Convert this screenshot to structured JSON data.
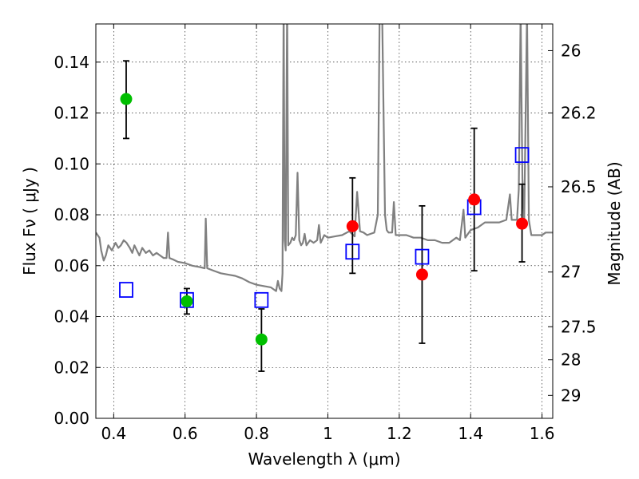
{
  "chart_data": {
    "type": "scatter",
    "xlabel": "Wavelength  λ (μm)",
    "ylabel": "Flux  Fν  ( μJy )",
    "y2label": "Magnitude (AB)",
    "xlim": [
      0.35,
      1.63
    ],
    "ylim": [
      0.0,
      0.155
    ],
    "grid": true,
    "x_ticks": [
      0.4,
      0.6,
      0.8,
      1.0,
      1.2,
      1.4,
      1.6
    ],
    "x_tick_labels": [
      "0.4",
      "0.6",
      "0.8",
      "1",
      "1.2",
      "1.4",
      "1.6"
    ],
    "y_ticks": [
      0.0,
      0.02,
      0.04,
      0.06,
      0.08,
      0.1,
      0.12,
      0.14
    ],
    "y_tick_labels": [
      "0.00",
      "0.02",
      "0.04",
      "0.06",
      "0.08",
      "0.10",
      "0.12",
      "0.14"
    ],
    "y2_ticks": [
      {
        "label": "26",
        "flux": 0.1445
      },
      {
        "label": "26.2",
        "flux": 0.12
      },
      {
        "label": "26.5",
        "flux": 0.091
      },
      {
        "label": "27",
        "flux": 0.0575
      },
      {
        "label": "27.5",
        "flux": 0.036
      },
      {
        "label": "28",
        "flux": 0.023
      },
      {
        "label": "29",
        "flux": 0.009
      }
    ],
    "colors": {
      "green": "#00bf00",
      "red": "#ff0000",
      "blue": "#0000ff",
      "spectrum": "#808080",
      "errorbar": "#000000"
    },
    "series": [
      {
        "marker": "circle",
        "color": "#00bf00",
        "points": [
          {
            "x": 0.435,
            "y": 0.1255,
            "ylow": 0.11,
            "yhigh": 0.1405
          },
          {
            "x": 0.605,
            "y": 0.046,
            "ylow": 0.041,
            "yhigh": 0.051
          },
          {
            "x": 0.814,
            "y": 0.031,
            "ylow": 0.0185,
            "yhigh": 0.043
          }
        ]
      },
      {
        "marker": "circle",
        "color": "#ff0000",
        "points": [
          {
            "x": 1.069,
            "y": 0.0755,
            "ylow": 0.057,
            "yhigh": 0.0945
          },
          {
            "x": 1.264,
            "y": 0.0565,
            "ylow": 0.0295,
            "yhigh": 0.0835
          },
          {
            "x": 1.41,
            "y": 0.086,
            "ylow": 0.058,
            "yhigh": 0.114
          },
          {
            "x": 1.544,
            "y": 0.0765,
            "ylow": 0.0615,
            "yhigh": 0.092
          }
        ]
      },
      {
        "marker": "square",
        "color": "#0000ff",
        "points": [
          {
            "x": 0.435,
            "y": 0.0505
          },
          {
            "x": 0.605,
            "y": 0.0465
          },
          {
            "x": 0.814,
            "y": 0.0465
          },
          {
            "x": 1.069,
            "y": 0.0655
          },
          {
            "x": 1.264,
            "y": 0.0635
          },
          {
            "x": 1.41,
            "y": 0.083
          },
          {
            "x": 1.544,
            "y": 0.1035
          }
        ]
      },
      {
        "marker": "line",
        "color": "#808080",
        "points": [
          [
            0.35,
            0.073
          ],
          [
            0.36,
            0.071
          ],
          [
            0.365,
            0.066
          ],
          [
            0.372,
            0.062
          ],
          [
            0.378,
            0.064
          ],
          [
            0.385,
            0.068
          ],
          [
            0.395,
            0.066
          ],
          [
            0.405,
            0.069
          ],
          [
            0.413,
            0.067
          ],
          [
            0.42,
            0.068
          ],
          [
            0.428,
            0.07
          ],
          [
            0.436,
            0.069
          ],
          [
            0.445,
            0.067
          ],
          [
            0.452,
            0.065
          ],
          [
            0.458,
            0.068
          ],
          [
            0.465,
            0.066
          ],
          [
            0.472,
            0.064
          ],
          [
            0.48,
            0.067
          ],
          [
            0.49,
            0.065
          ],
          [
            0.5,
            0.066
          ],
          [
            0.51,
            0.064
          ],
          [
            0.52,
            0.065
          ],
          [
            0.53,
            0.064
          ],
          [
            0.54,
            0.063
          ],
          [
            0.548,
            0.063
          ],
          [
            0.552,
            0.073
          ],
          [
            0.556,
            0.063
          ],
          [
            0.565,
            0.0625
          ],
          [
            0.58,
            0.0615
          ],
          [
            0.6,
            0.061
          ],
          [
            0.62,
            0.06
          ],
          [
            0.64,
            0.0595
          ],
          [
            0.655,
            0.059
          ],
          [
            0.658,
            0.0785
          ],
          [
            0.662,
            0.059
          ],
          [
            0.68,
            0.058
          ],
          [
            0.7,
            0.057
          ],
          [
            0.72,
            0.0565
          ],
          [
            0.74,
            0.056
          ],
          [
            0.76,
            0.055
          ],
          [
            0.78,
            0.0535
          ],
          [
            0.8,
            0.0525
          ],
          [
            0.82,
            0.052
          ],
          [
            0.84,
            0.0515
          ],
          [
            0.855,
            0.05
          ],
          [
            0.86,
            0.054
          ],
          [
            0.865,
            0.051
          ],
          [
            0.87,
            0.05
          ],
          [
            0.873,
            0.057
          ],
          [
            0.876,
            0.164
          ],
          [
            0.879,
            0.07
          ],
          [
            0.882,
            0.066
          ],
          [
            0.886,
            0.164
          ],
          [
            0.889,
            0.068
          ],
          [
            0.895,
            0.069
          ],
          [
            0.9,
            0.071
          ],
          [
            0.905,
            0.07
          ],
          [
            0.91,
            0.072
          ],
          [
            0.915,
            0.0965
          ],
          [
            0.92,
            0.07
          ],
          [
            0.925,
            0.068
          ],
          [
            0.93,
            0.069
          ],
          [
            0.935,
            0.0725
          ],
          [
            0.94,
            0.068
          ],
          [
            0.945,
            0.069
          ],
          [
            0.95,
            0.07
          ],
          [
            0.96,
            0.069
          ],
          [
            0.97,
            0.07
          ],
          [
            0.975,
            0.076
          ],
          [
            0.98,
            0.069
          ],
          [
            0.99,
            0.072
          ],
          [
            1.0,
            0.071
          ],
          [
            1.02,
            0.0715
          ],
          [
            1.04,
            0.072
          ],
          [
            1.06,
            0.0735
          ],
          [
            1.075,
            0.0715
          ],
          [
            1.082,
            0.089
          ],
          [
            1.09,
            0.0735
          ],
          [
            1.1,
            0.073
          ],
          [
            1.11,
            0.072
          ],
          [
            1.12,
            0.0725
          ],
          [
            1.13,
            0.073
          ],
          [
            1.14,
            0.08
          ],
          [
            1.145,
            0.16
          ],
          [
            1.152,
            0.16
          ],
          [
            1.16,
            0.08
          ],
          [
            1.165,
            0.074
          ],
          [
            1.17,
            0.073
          ],
          [
            1.18,
            0.073
          ],
          [
            1.185,
            0.085
          ],
          [
            1.19,
            0.072
          ],
          [
            1.2,
            0.072
          ],
          [
            1.22,
            0.072
          ],
          [
            1.24,
            0.071
          ],
          [
            1.26,
            0.071
          ],
          [
            1.28,
            0.07
          ],
          [
            1.3,
            0.07
          ],
          [
            1.32,
            0.069
          ],
          [
            1.34,
            0.069
          ],
          [
            1.36,
            0.071
          ],
          [
            1.37,
            0.07
          ],
          [
            1.38,
            0.082
          ],
          [
            1.385,
            0.071
          ],
          [
            1.4,
            0.074
          ],
          [
            1.42,
            0.075
          ],
          [
            1.44,
            0.077
          ],
          [
            1.46,
            0.077
          ],
          [
            1.48,
            0.077
          ],
          [
            1.5,
            0.078
          ],
          [
            1.51,
            0.088
          ],
          [
            1.515,
            0.078
          ],
          [
            1.53,
            0.078
          ],
          [
            1.535,
            0.09
          ],
          [
            1.54,
            0.16
          ],
          [
            1.545,
            0.094
          ],
          [
            1.55,
            0.078
          ],
          [
            1.558,
            0.16
          ],
          [
            1.563,
            0.078
          ],
          [
            1.57,
            0.072
          ],
          [
            1.58,
            0.072
          ],
          [
            1.6,
            0.072
          ],
          [
            1.61,
            0.073
          ],
          [
            1.63,
            0.073
          ]
        ]
      }
    ]
  }
}
